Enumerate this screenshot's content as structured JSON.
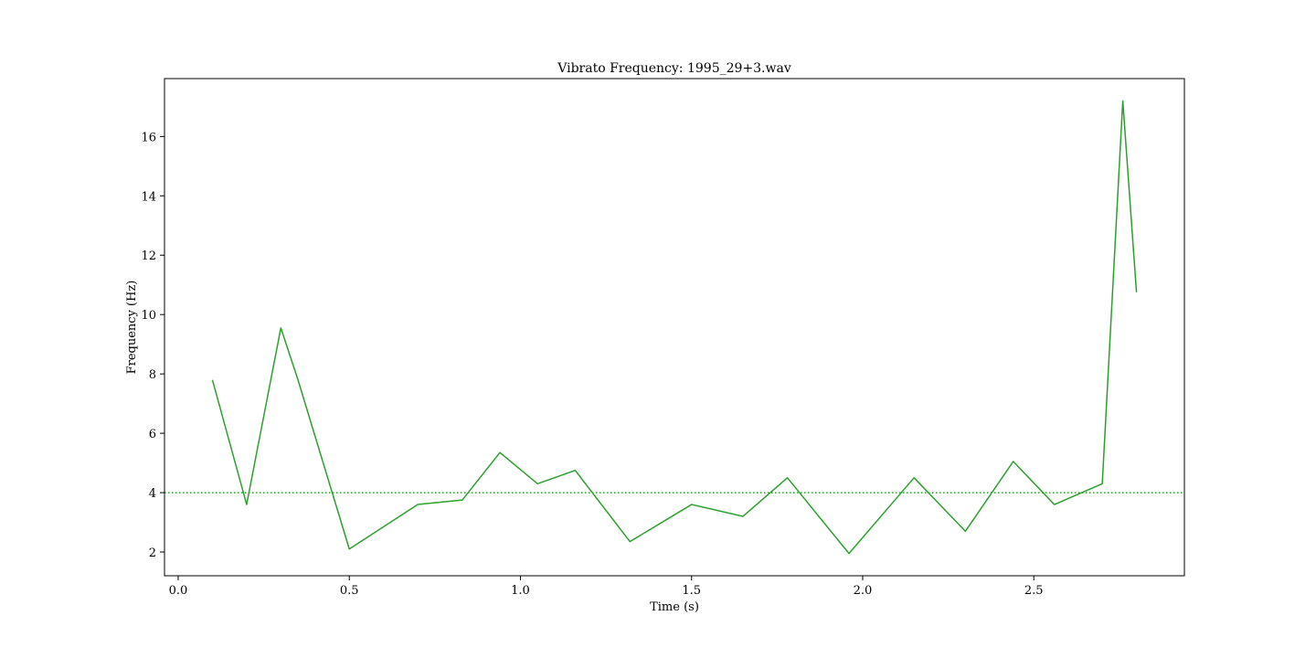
{
  "chart_data": {
    "type": "line",
    "title": "Vibrato Frequency: 1995_29+3.wav",
    "xlabel": "Time (s)",
    "ylabel": "Frequency (Hz)",
    "xlim": [
      -0.04,
      2.94
    ],
    "ylim": [
      1.2,
      17.95
    ],
    "xticks": [
      0.0,
      0.5,
      1.0,
      1.5,
      2.0,
      2.5
    ],
    "xtick_labels": [
      "0.0",
      "0.5",
      "1.0",
      "1.5",
      "2.0",
      "2.5"
    ],
    "yticks": [
      2,
      4,
      6,
      8,
      10,
      12,
      14,
      16
    ],
    "ytick_labels": [
      "2",
      "4",
      "6",
      "8",
      "10",
      "12",
      "14",
      "16"
    ],
    "grid": false,
    "legend": "none",
    "series": [
      {
        "color": "#2ca02c",
        "style": "solid",
        "x": [
          0.1,
          0.2,
          0.3,
          0.35,
          0.5,
          0.7,
          0.83,
          0.94,
          1.05,
          1.16,
          1.32,
          1.5,
          1.65,
          1.78,
          1.96,
          2.15,
          2.3,
          2.44,
          2.56,
          2.7,
          2.76,
          2.8
        ],
        "y": [
          7.8,
          3.6,
          9.55,
          7.8,
          2.1,
          3.6,
          3.75,
          5.35,
          4.3,
          4.75,
          2.35,
          3.6,
          3.2,
          4.5,
          1.95,
          4.5,
          2.7,
          5.05,
          3.6,
          4.3,
          17.2,
          10.75
        ]
      }
    ],
    "hlines": [
      {
        "y": 4.0,
        "color": "#2ca02c",
        "style": "dotted"
      }
    ]
  }
}
